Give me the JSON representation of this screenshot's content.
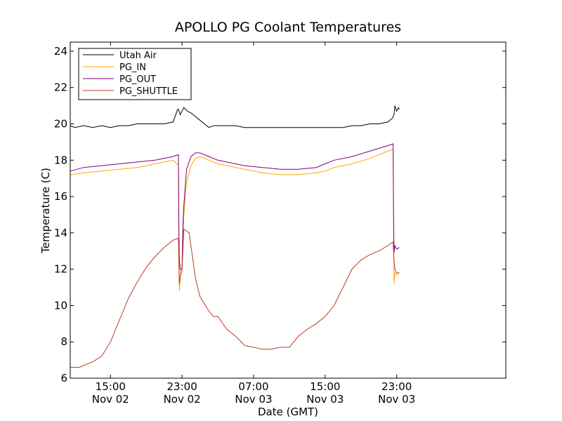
{
  "chart_data": {
    "type": "line",
    "title": "APOLLO PG Coolant Temperatures",
    "xlabel": "Date (GMT)",
    "ylabel": "Temperature (C)",
    "xlim": [
      10.5,
      59.2
    ],
    "ylim": [
      6,
      24.5
    ],
    "grid": false,
    "legend_position": "top-left",
    "x_ticks": [
      {
        "value": 15,
        "label1": "15:00",
        "label2": "Nov 02"
      },
      {
        "value": 23,
        "label1": "23:00",
        "label2": "Nov 02"
      },
      {
        "value": 31,
        "label1": "07:00",
        "label2": "Nov 03"
      },
      {
        "value": 39,
        "label1": "15:00",
        "label2": "Nov 03"
      },
      {
        "value": 47,
        "label1": "23:00",
        "label2": "Nov 03"
      }
    ],
    "y_ticks": [
      {
        "value": 6,
        "label": "6"
      },
      {
        "value": 8,
        "label": "8"
      },
      {
        "value": 10,
        "label": "10"
      },
      {
        "value": 12,
        "label": "12"
      },
      {
        "value": 14,
        "label": "14"
      },
      {
        "value": 16,
        "label": "16"
      },
      {
        "value": 18,
        "label": "18"
      },
      {
        "value": 20,
        "label": "20"
      },
      {
        "value": 22,
        "label": "22"
      },
      {
        "value": 24,
        "label": "24"
      }
    ],
    "series": [
      {
        "name": "Utah Air",
        "color": "#000000",
        "x": [
          10.5,
          11,
          12,
          13,
          14,
          15,
          16,
          17,
          18,
          19,
          20,
          21,
          22,
          22.5,
          22.6,
          22.8,
          23.2,
          23.4,
          23.6,
          24,
          25,
          26,
          26.5,
          27,
          28,
          29,
          30,
          31,
          32,
          33,
          34,
          35,
          36,
          37,
          38,
          39,
          40,
          41,
          42,
          43,
          44,
          45,
          46,
          46.5,
          46.7,
          46.8,
          47,
          47.2,
          47.3
        ],
        "y": [
          19.9,
          19.8,
          19.9,
          19.8,
          19.9,
          19.8,
          19.9,
          19.9,
          20.0,
          20.0,
          20.0,
          20.0,
          20.1,
          20.8,
          20.8,
          20.5,
          20.9,
          20.8,
          20.7,
          20.6,
          20.2,
          19.8,
          19.9,
          19.9,
          19.9,
          19.9,
          19.8,
          19.8,
          19.8,
          19.8,
          19.8,
          19.8,
          19.8,
          19.8,
          19.8,
          19.8,
          19.8,
          19.8,
          19.9,
          19.9,
          20.0,
          20.0,
          20.1,
          20.3,
          20.5,
          21.0,
          20.7,
          20.9,
          20.8
        ]
      },
      {
        "name": "PG_IN",
        "color": "#FFA500",
        "x": [
          10.5,
          12,
          14,
          16,
          18,
          20,
          22,
          22.6,
          22.65,
          22.7,
          22.8,
          22.9,
          23,
          23.1,
          23.2,
          23.5,
          24,
          24.5,
          25,
          26,
          27,
          28,
          30,
          32,
          34,
          36,
          38,
          39,
          40,
          42,
          44,
          46,
          46.6,
          46.65,
          46.7,
          46.8,
          47,
          47.3
        ],
        "y": [
          17.2,
          17.3,
          17.4,
          17.5,
          17.6,
          17.8,
          18.0,
          17.7,
          12.5,
          10.8,
          11.5,
          11.8,
          11.8,
          13.5,
          15.0,
          16.8,
          17.7,
          18.1,
          18.2,
          18.0,
          17.8,
          17.7,
          17.5,
          17.3,
          17.2,
          17.2,
          17.3,
          17.4,
          17.6,
          17.8,
          18.1,
          18.5,
          18.6,
          15.0,
          11.2,
          11.8,
          11.7,
          11.8
        ]
      },
      {
        "name": "PG_OUT",
        "color": "#800080",
        "x": [
          10.5,
          12,
          14,
          16,
          18,
          20,
          22,
          22.6,
          22.65,
          22.7,
          22.8,
          22.9,
          23,
          23.1,
          23.2,
          23.5,
          24,
          24.5,
          25,
          26,
          27,
          28,
          30,
          32,
          34,
          36,
          38,
          39,
          40,
          42,
          44,
          46,
          46.6,
          46.65,
          46.7,
          46.8,
          47,
          47.3
        ],
        "y": [
          17.4,
          17.6,
          17.7,
          17.8,
          17.9,
          18.0,
          18.2,
          18.3,
          14.0,
          12.5,
          12.0,
          12.0,
          12.0,
          14.5,
          15.5,
          17.5,
          18.2,
          18.4,
          18.4,
          18.2,
          18.0,
          17.9,
          17.7,
          17.6,
          17.5,
          17.5,
          17.6,
          17.8,
          18.0,
          18.2,
          18.5,
          18.8,
          18.9,
          15.0,
          12.9,
          13.3,
          13.1,
          13.2
        ]
      },
      {
        "name": "PG_SHUTTLE",
        "color": "#C0392B",
        "x": [
          10.5,
          11,
          11.5,
          12,
          13,
          14,
          15,
          16,
          17,
          18,
          19,
          20,
          21,
          22,
          22.6,
          22.7,
          22.9,
          23,
          23.2,
          23.5,
          23.8,
          24.5,
          25,
          26,
          26.5,
          27,
          28,
          29,
          30,
          31,
          32,
          33,
          34,
          35,
          36,
          37,
          38,
          39,
          40,
          41,
          42,
          43,
          44,
          45,
          46,
          46.6,
          46.7,
          46.8,
          47,
          47.3
        ],
        "y": [
          6.6,
          6.6,
          6.6,
          6.7,
          6.9,
          7.2,
          8.0,
          9.2,
          10.4,
          11.3,
          12.1,
          12.7,
          13.2,
          13.6,
          13.7,
          11.2,
          12.0,
          12.0,
          14.2,
          14.1,
          14.0,
          11.5,
          10.5,
          9.7,
          9.4,
          9.4,
          8.7,
          8.3,
          7.8,
          7.7,
          7.6,
          7.6,
          7.7,
          7.7,
          8.3,
          8.7,
          9.0,
          9.4,
          10.0,
          11.0,
          12.0,
          12.5,
          12.8,
          13.0,
          13.3,
          13.5,
          12.5,
          12.0,
          11.8,
          11.8
        ]
      }
    ]
  }
}
